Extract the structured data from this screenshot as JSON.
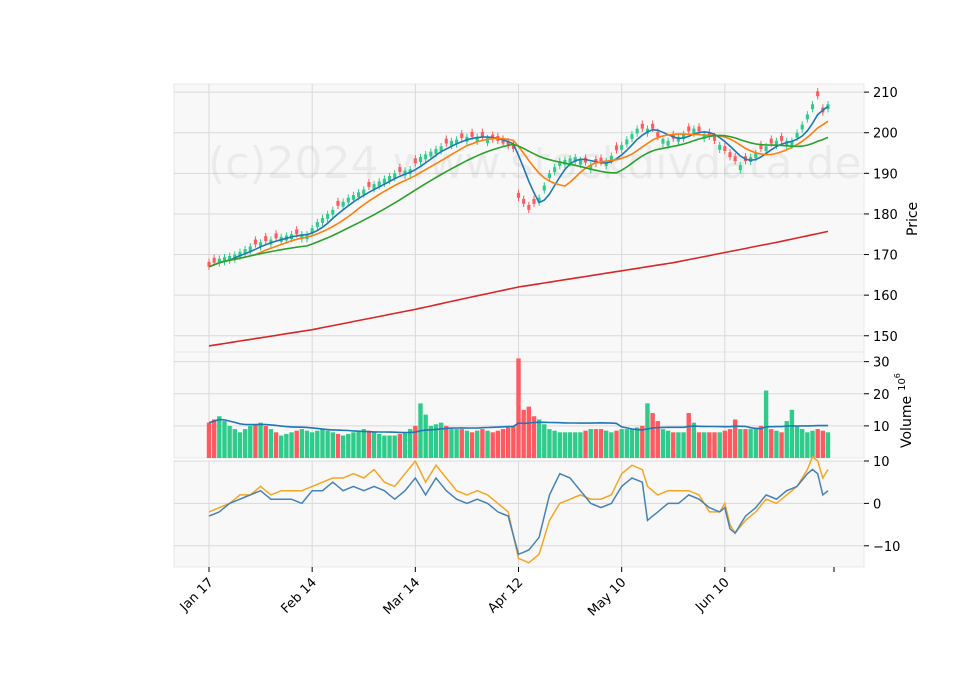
{
  "watermark": "(c)2024 www.stockdivdata.de",
  "chart_data": {
    "type": "candlestick",
    "price_axis": {
      "label": "Price",
      "ticks": [
        150,
        160,
        170,
        180,
        190,
        200,
        210
      ],
      "ylim": [
        146,
        212
      ]
    },
    "volume_axis": {
      "label": "Volume",
      "multiplier": "10^6",
      "ticks": [
        10,
        20,
        30
      ],
      "ylim": [
        0,
        33
      ]
    },
    "osc_axis": {
      "ticks": [
        10,
        0,
        -10
      ],
      "tick_labels": [
        "10",
        "0",
        "−10"
      ],
      "ylim": [
        -15,
        10
      ]
    },
    "x_tick_labels": [
      "Jan 17",
      "Feb 14",
      "Mar 14",
      "Apr 12",
      "May 10",
      "Jun 10"
    ],
    "x_tick_index": [
      0,
      20,
      40,
      60,
      80,
      100
    ],
    "extra_x_tick_index": 120,
    "n_days": 120,
    "close_anchors": [
      [
        0,
        167
      ],
      [
        2,
        169
      ],
      [
        5,
        170
      ],
      [
        8,
        172
      ],
      [
        10,
        173
      ],
      [
        13,
        174
      ],
      [
        16,
        175
      ],
      [
        19,
        175
      ],
      [
        21,
        178
      ],
      [
        24,
        181
      ],
      [
        27,
        184
      ],
      [
        30,
        186
      ],
      [
        33,
        188
      ],
      [
        36,
        190
      ],
      [
        39,
        191
      ],
      [
        41,
        194
      ],
      [
        44,
        196
      ],
      [
        47,
        198
      ],
      [
        50,
        199
      ],
      [
        53,
        199
      ],
      [
        56,
        198
      ],
      [
        59,
        196
      ],
      [
        60,
        184
      ],
      [
        62,
        181
      ],
      [
        64,
        184
      ],
      [
        66,
        190
      ],
      [
        68,
        193
      ],
      [
        71,
        194
      ],
      [
        74,
        192
      ],
      [
        77,
        193
      ],
      [
        80,
        197
      ],
      [
        83,
        201
      ],
      [
        86,
        201
      ],
      [
        87,
        199
      ],
      [
        89,
        198
      ],
      [
        91,
        199
      ],
      [
        94,
        201
      ],
      [
        97,
        199
      ],
      [
        99,
        197
      ],
      [
        101,
        194
      ],
      [
        103,
        192
      ],
      [
        105,
        194
      ],
      [
        107,
        196
      ],
      [
        110,
        198
      ],
      [
        113,
        198
      ],
      [
        115,
        202
      ],
      [
        117,
        207
      ],
      [
        118,
        209
      ],
      [
        119,
        205
      ],
      [
        120,
        207
      ]
    ],
    "volume_anchors": [
      [
        0,
        11
      ],
      [
        2,
        13
      ],
      [
        4,
        10
      ],
      [
        6,
        8
      ],
      [
        8,
        10
      ],
      [
        10,
        11
      ],
      [
        12,
        9
      ],
      [
        14,
        7
      ],
      [
        16,
        8
      ],
      [
        18,
        9
      ],
      [
        20,
        8
      ],
      [
        22,
        9
      ],
      [
        24,
        8
      ],
      [
        26,
        7
      ],
      [
        28,
        8
      ],
      [
        30,
        9
      ],
      [
        32,
        8
      ],
      [
        34,
        7
      ],
      [
        36,
        7
      ],
      [
        38,
        8
      ],
      [
        40,
        10
      ],
      [
        41,
        17
      ],
      [
        43,
        10
      ],
      [
        45,
        11
      ],
      [
        47,
        9
      ],
      [
        49,
        9
      ],
      [
        51,
        8
      ],
      [
        53,
        9
      ],
      [
        55,
        8
      ],
      [
        57,
        9
      ],
      [
        59,
        10
      ],
      [
        60,
        31
      ],
      [
        61,
        15
      ],
      [
        62,
        16
      ],
      [
        63,
        13
      ],
      [
        64,
        12
      ],
      [
        66,
        9
      ],
      [
        68,
        8
      ],
      [
        70,
        8
      ],
      [
        72,
        8
      ],
      [
        74,
        9
      ],
      [
        76,
        9
      ],
      [
        78,
        8
      ],
      [
        80,
        9
      ],
      [
        82,
        9
      ],
      [
        84,
        10
      ],
      [
        85,
        17
      ],
      [
        86,
        14
      ],
      [
        88,
        9
      ],
      [
        90,
        8
      ],
      [
        92,
        8
      ],
      [
        93,
        14
      ],
      [
        95,
        8
      ],
      [
        97,
        8
      ],
      [
        99,
        8
      ],
      [
        101,
        9
      ],
      [
        102,
        12
      ],
      [
        103,
        9
      ],
      [
        105,
        9
      ],
      [
        107,
        10
      ],
      [
        108,
        21
      ],
      [
        109,
        9
      ],
      [
        111,
        8
      ],
      [
        113,
        15
      ],
      [
        114,
        10
      ],
      [
        116,
        8
      ],
      [
        118,
        9
      ],
      [
        120,
        8
      ]
    ],
    "down_days": [
      0,
      1,
      9,
      11,
      13,
      17,
      25,
      31,
      37,
      40,
      46,
      49,
      51,
      53,
      55,
      56,
      57,
      58,
      59,
      60,
      61,
      62,
      63,
      73,
      75,
      76,
      79,
      84,
      86,
      87,
      90,
      93,
      95,
      97,
      98,
      100,
      101,
      102,
      104,
      107,
      109,
      111,
      118,
      119
    ],
    "series": [
      {
        "ma_window": 5,
        "color": "#1f77b4"
      },
      {
        "ma_window": 10,
        "color": "#ff7f0e"
      },
      {
        "ma_window": 20,
        "color": "#2ca02c"
      },
      {
        "color": "#d62728",
        "values": [
          [
            0,
            147.5
          ],
          [
            10,
            149.5
          ],
          [
            20,
            151.5
          ],
          [
            30,
            154
          ],
          [
            40,
            156.5
          ],
          [
            50,
            159.3
          ],
          [
            60,
            162
          ],
          [
            70,
            164
          ],
          [
            80,
            166
          ],
          [
            90,
            168
          ],
          [
            100,
            170.5
          ],
          [
            110,
            173
          ],
          [
            120,
            175.7
          ]
        ]
      }
    ],
    "volume_ma_color": "#1f77b4",
    "up_color": "#2ecc8a",
    "down_color": "#ff5a5f",
    "oscillator": [
      {
        "color": "#f5a623",
        "values": [
          [
            0,
            -2
          ],
          [
            2,
            -1
          ],
          [
            4,
            0
          ],
          [
            6,
            2
          ],
          [
            8,
            2
          ],
          [
            10,
            4
          ],
          [
            12,
            2
          ],
          [
            14,
            3
          ],
          [
            16,
            3
          ],
          [
            18,
            3
          ],
          [
            20,
            4
          ],
          [
            22,
            5
          ],
          [
            24,
            6
          ],
          [
            26,
            6
          ],
          [
            28,
            7
          ],
          [
            30,
            6
          ],
          [
            32,
            8
          ],
          [
            34,
            5
          ],
          [
            36,
            4
          ],
          [
            38,
            7
          ],
          [
            40,
            10
          ],
          [
            42,
            5
          ],
          [
            44,
            9
          ],
          [
            46,
            6
          ],
          [
            48,
            3
          ],
          [
            50,
            2
          ],
          [
            52,
            3
          ],
          [
            54,
            2
          ],
          [
            56,
            0
          ],
          [
            58,
            -2
          ],
          [
            60,
            -13
          ],
          [
            62,
            -14
          ],
          [
            64,
            -12
          ],
          [
            66,
            -4
          ],
          [
            68,
            0
          ],
          [
            70,
            1
          ],
          [
            72,
            2
          ],
          [
            74,
            1
          ],
          [
            76,
            1
          ],
          [
            78,
            2
          ],
          [
            80,
            7
          ],
          [
            82,
            9
          ],
          [
            84,
            8
          ],
          [
            85,
            4
          ],
          [
            87,
            2
          ],
          [
            89,
            3
          ],
          [
            91,
            3
          ],
          [
            93,
            3
          ],
          [
            95,
            2
          ],
          [
            97,
            -2
          ],
          [
            99,
            -2
          ],
          [
            100,
            0
          ],
          [
            101,
            -5
          ],
          [
            102,
            -7
          ],
          [
            104,
            -4
          ],
          [
            106,
            -2
          ],
          [
            108,
            1
          ],
          [
            110,
            0
          ],
          [
            112,
            2
          ],
          [
            114,
            4
          ],
          [
            116,
            8
          ],
          [
            117,
            11
          ],
          [
            118,
            10
          ],
          [
            119,
            6
          ],
          [
            120,
            8
          ]
        ]
      },
      {
        "color": "#4682b4",
        "values": [
          [
            0,
            -3
          ],
          [
            2,
            -2
          ],
          [
            4,
            0
          ],
          [
            6,
            1
          ],
          [
            8,
            2
          ],
          [
            10,
            3
          ],
          [
            12,
            1
          ],
          [
            14,
            1
          ],
          [
            16,
            1
          ],
          [
            18,
            0
          ],
          [
            20,
            3
          ],
          [
            22,
            3
          ],
          [
            24,
            5
          ],
          [
            26,
            3
          ],
          [
            28,
            4
          ],
          [
            30,
            3
          ],
          [
            32,
            4
          ],
          [
            34,
            3
          ],
          [
            36,
            1
          ],
          [
            38,
            3
          ],
          [
            40,
            6
          ],
          [
            42,
            2
          ],
          [
            44,
            6
          ],
          [
            46,
            3
          ],
          [
            48,
            1
          ],
          [
            50,
            0
          ],
          [
            52,
            1
          ],
          [
            54,
            0
          ],
          [
            56,
            -2
          ],
          [
            58,
            -3
          ],
          [
            60,
            -12
          ],
          [
            62,
            -11
          ],
          [
            64,
            -8
          ],
          [
            66,
            2
          ],
          [
            68,
            7
          ],
          [
            70,
            6
          ],
          [
            72,
            3
          ],
          [
            74,
            0
          ],
          [
            76,
            -1
          ],
          [
            78,
            0
          ],
          [
            80,
            4
          ],
          [
            82,
            6
          ],
          [
            84,
            5
          ],
          [
            85,
            -4
          ],
          [
            87,
            -2
          ],
          [
            89,
            0
          ],
          [
            91,
            0
          ],
          [
            93,
            2
          ],
          [
            95,
            1
          ],
          [
            97,
            -1
          ],
          [
            99,
            -2
          ],
          [
            100,
            -1
          ],
          [
            101,
            -6
          ],
          [
            102,
            -7
          ],
          [
            104,
            -3
          ],
          [
            106,
            -1
          ],
          [
            108,
            2
          ],
          [
            110,
            1
          ],
          [
            112,
            3
          ],
          [
            114,
            4
          ],
          [
            116,
            7
          ],
          [
            117,
            8
          ],
          [
            118,
            7
          ],
          [
            119,
            2
          ],
          [
            120,
            3
          ]
        ]
      }
    ],
    "grid": true,
    "legend": "none"
  }
}
